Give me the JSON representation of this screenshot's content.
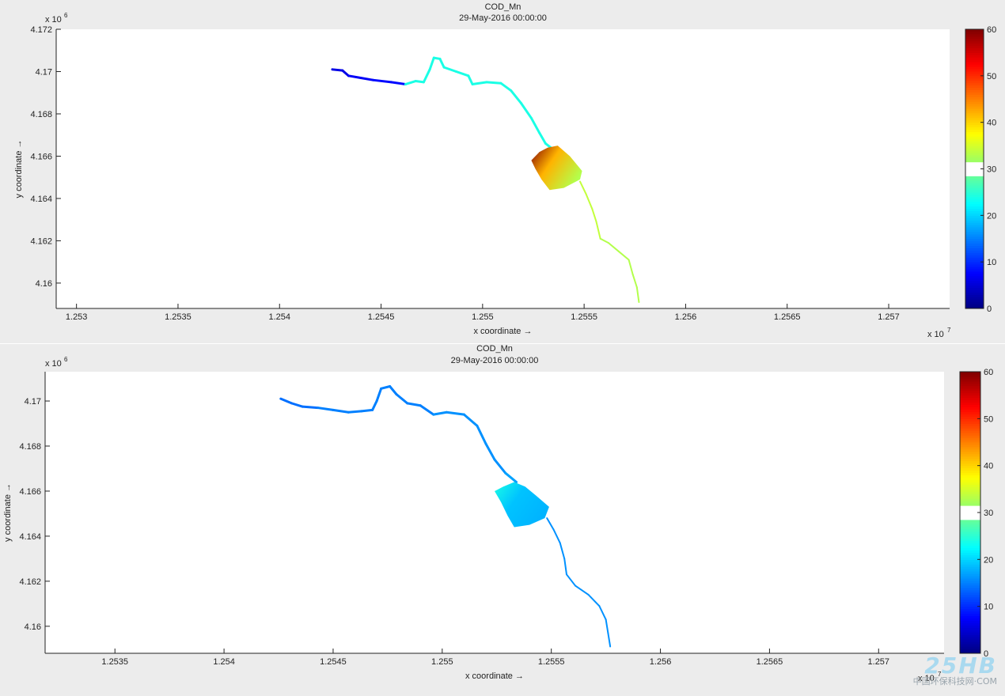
{
  "chart_data": [
    {
      "type": "heatmap",
      "title": "COD_Mn",
      "subtitle": "29-May-2016 00:00:00",
      "xlabel": "x coordinate →",
      "ylabel": "y coordinate →",
      "x_exponent_label": "x 10",
      "x_exponent": "7",
      "y_exponent_label": "x 10",
      "y_exponent": "6",
      "xlim": [
        12529000,
        12573000
      ],
      "ylim": [
        4158800,
        4172000
      ],
      "xticks": [
        12530000,
        12535000,
        12540000,
        12545000,
        12550000,
        12555000,
        12560000,
        12565000,
        12570000
      ],
      "xticklabels": [
        "1.253",
        "1.2535",
        "1.254",
        "1.2545",
        "1.255",
        "1.2555",
        "1.256",
        "1.2565",
        "1.257"
      ],
      "yticks": [
        4160000,
        4162000,
        4164000,
        4166000,
        4168000,
        4170000,
        4172000
      ],
      "yticklabels": [
        "4.16",
        "4.162",
        "4.164",
        "4.166",
        "4.168",
        "4.17",
        "4.172"
      ],
      "colorbar": {
        "range": [
          0,
          60
        ],
        "ticks": [
          0,
          10,
          20,
          30,
          40,
          50,
          60
        ],
        "ticklabels": [
          "0",
          "10",
          "20",
          "30",
          "40",
          "50",
          "60"
        ]
      },
      "river_upper_path": [
        [
          12542600,
          4170100
        ],
        [
          12543100,
          4170050
        ],
        [
          12543400,
          4169800
        ],
        [
          12544000,
          4169700
        ],
        [
          12544600,
          4169600
        ],
        [
          12545500,
          4169500
        ],
        [
          12546200,
          4169400
        ],
        [
          12546700,
          4169550
        ],
        [
          12547100,
          4169500
        ],
        [
          12547400,
          4170100
        ],
        [
          12547600,
          4170650
        ],
        [
          12547900,
          4170600
        ],
        [
          12548100,
          4170200
        ],
        [
          12548700,
          4170000
        ],
        [
          12549300,
          4169800
        ],
        [
          12549500,
          4169400
        ],
        [
          12550200,
          4169500
        ],
        [
          12550900,
          4169450
        ],
        [
          12551400,
          4169100
        ],
        [
          12551900,
          4168500
        ],
        [
          12552400,
          4167800
        ],
        [
          12552800,
          4167100
        ],
        [
          12553100,
          4166600
        ],
        [
          12553500,
          4166300
        ]
      ],
      "river_upper_values": [
        6,
        6,
        7,
        7,
        8,
        8,
        24,
        24,
        24,
        24,
        24,
        24,
        24,
        24,
        24,
        24,
        24,
        24,
        24,
        24,
        24,
        24,
        24,
        24
      ],
      "lake_patch": {
        "outline": [
          [
            12552400,
            4165800
          ],
          [
            12552800,
            4166200
          ],
          [
            12553200,
            4166400
          ],
          [
            12553700,
            4166500
          ],
          [
            12554300,
            4166000
          ],
          [
            12554900,
            4165300
          ],
          [
            12554800,
            4164900
          ],
          [
            12554000,
            4164500
          ],
          [
            12553300,
            4164400
          ],
          [
            12552900,
            4164900
          ],
          [
            12552600,
            4165400
          ]
        ],
        "hot_value": 60,
        "mid_value": 42,
        "edge_value": 33
      },
      "river_lower_path": [
        [
          12554800,
          4164800
        ],
        [
          12555100,
          4164200
        ],
        [
          12555400,
          4163500
        ],
        [
          12555600,
          4162900
        ],
        [
          12555800,
          4162100
        ],
        [
          12556200,
          4161900
        ],
        [
          12556700,
          4161500
        ],
        [
          12557200,
          4161100
        ],
        [
          12557400,
          4160400
        ],
        [
          12557600,
          4159800
        ],
        [
          12557700,
          4159100
        ]
      ],
      "river_lower_values": [
        34,
        34,
        34,
        34,
        33,
        33,
        33,
        33,
        33,
        33,
        33
      ]
    },
    {
      "type": "heatmap",
      "title": "COD_Mn",
      "subtitle": "29-May-2016 00:00:00",
      "xlabel": "x coordinate →",
      "ylabel": "y coordinate →",
      "x_exponent_label": "x 10",
      "x_exponent": "7",
      "y_exponent_label": "x 10",
      "y_exponent": "6",
      "xlim": [
        12531800,
        12573000
      ],
      "ylim": [
        4158800,
        4171300
      ],
      "xticks": [
        12535000,
        12540000,
        12545000,
        12550000,
        12555000,
        12560000,
        12565000,
        12570000
      ],
      "xticklabels": [
        "1.2535",
        "1.254",
        "1.2545",
        "1.255",
        "1.2555",
        "1.256",
        "1.2565",
        "1.257"
      ],
      "yticks": [
        4160000,
        4162000,
        4164000,
        4166000,
        4168000,
        4170000
      ],
      "yticklabels": [
        "4.16",
        "4.162",
        "4.164",
        "4.166",
        "4.168",
        "4.17"
      ],
      "colorbar": {
        "range": [
          0,
          60
        ],
        "ticks": [
          0,
          10,
          20,
          30,
          40,
          50,
          60
        ],
        "ticklabels": [
          "0",
          "10",
          "20",
          "30",
          "40",
          "50",
          "60"
        ]
      },
      "river_upper_path": [
        [
          12542600,
          4170100
        ],
        [
          12543100,
          4169900
        ],
        [
          12543600,
          4169750
        ],
        [
          12544300,
          4169700
        ],
        [
          12545000,
          4169600
        ],
        [
          12545700,
          4169500
        ],
        [
          12546300,
          4169550
        ],
        [
          12546800,
          4169600
        ],
        [
          12547000,
          4170000
        ],
        [
          12547200,
          4170550
        ],
        [
          12547600,
          4170650
        ],
        [
          12547900,
          4170300
        ],
        [
          12548400,
          4169900
        ],
        [
          12549000,
          4169800
        ],
        [
          12549600,
          4169400
        ],
        [
          12550200,
          4169500
        ],
        [
          12551000,
          4169400
        ],
        [
          12551600,
          4168900
        ],
        [
          12552000,
          4168100
        ],
        [
          12552400,
          4167400
        ],
        [
          12552900,
          4166800
        ],
        [
          12553400,
          4166400
        ]
      ],
      "river_upper_values": [
        14,
        14,
        14,
        15,
        15,
        15,
        15,
        15,
        15,
        15,
        15,
        15,
        15,
        15,
        16,
        16,
        16,
        16,
        16,
        16,
        17,
        17
      ],
      "lake_patch": {
        "outline": [
          [
            12552400,
            4166000
          ],
          [
            12552800,
            4166200
          ],
          [
            12553300,
            4166400
          ],
          [
            12553800,
            4166200
          ],
          [
            12554300,
            4165800
          ],
          [
            12554900,
            4165300
          ],
          [
            12554700,
            4164800
          ],
          [
            12554000,
            4164500
          ],
          [
            12553300,
            4164400
          ],
          [
            12553000,
            4164900
          ],
          [
            12552700,
            4165500
          ]
        ],
        "hot_value": 24,
        "mid_value": 19,
        "edge_value": 18
      },
      "river_lower_path": [
        [
          12554800,
          4164800
        ],
        [
          12555100,
          4164300
        ],
        [
          12555400,
          4163700
        ],
        [
          12555600,
          4163000
        ],
        [
          12555700,
          4162300
        ],
        [
          12556100,
          4161800
        ],
        [
          12556700,
          4161400
        ],
        [
          12557200,
          4160900
        ],
        [
          12557500,
          4160300
        ],
        [
          12557600,
          4159700
        ],
        [
          12557700,
          4159100
        ]
      ],
      "river_lower_values": [
        16,
        16,
        16,
        16,
        16,
        16,
        16,
        16,
        16,
        16,
        16
      ]
    }
  ],
  "watermark": {
    "logo": "25HB",
    "caption": "中国环保科技网·COM"
  }
}
